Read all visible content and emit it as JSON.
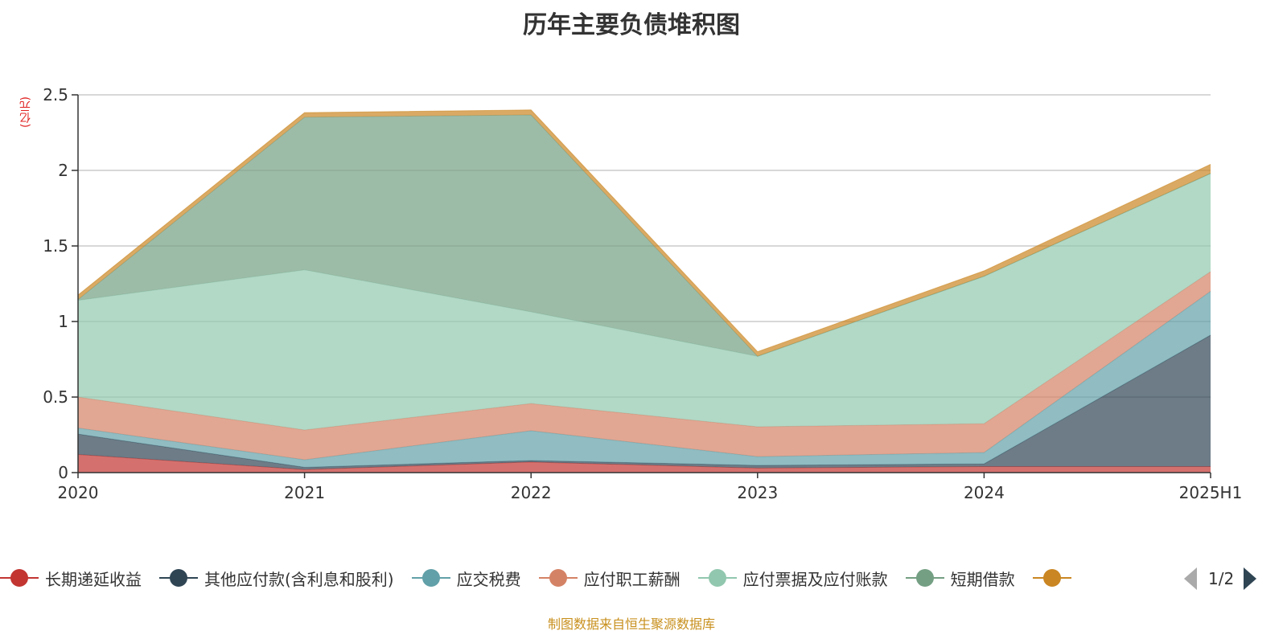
{
  "chart_data": {
    "type": "area",
    "stacked": true,
    "title": "历年主要负债堆积图",
    "ylabel": "(亿元)",
    "xlabel": "",
    "categories": [
      "2020",
      "2021",
      "2022",
      "2023",
      "2024",
      "2025H1"
    ],
    "ylim": [
      0,
      2.5
    ],
    "yticks": [
      "0",
      "0.5",
      "1",
      "1.5",
      "2",
      "2.5"
    ],
    "grid": true,
    "legend_position": "bottom",
    "series": [
      {
        "name": "长期递延收益",
        "color": "#c23531",
        "values": [
          0.12,
          0.02,
          0.07,
          0.03,
          0.04,
          0.04
        ]
      },
      {
        "name": "其他应付款(含利息和股利)",
        "color": "#2f4554",
        "values": [
          0.135,
          0.015,
          0.01,
          0.018,
          0.018,
          0.87
        ]
      },
      {
        "name": "应交税费",
        "color": "#61a0a8",
        "values": [
          0.04,
          0.05,
          0.197,
          0.058,
          0.075,
          0.29
        ]
      },
      {
        "name": "应付职工薪酬",
        "color": "#d48265",
        "values": [
          0.205,
          0.197,
          0.18,
          0.197,
          0.191,
          0.13
        ]
      },
      {
        "name": "应付票据及应付账款",
        "color": "#91c7ae",
        "values": [
          0.64,
          1.06,
          0.607,
          0.467,
          0.976,
          0.65
        ]
      },
      {
        "name": "短期借款",
        "color": "#749f83",
        "values": [
          0.005,
          1.01,
          1.303,
          0,
          0,
          0
        ]
      },
      {
        "color": "#ca8622",
        "values": [
          0.03,
          0.03,
          0.033,
          0.03,
          0.035,
          0.06
        ]
      }
    ]
  },
  "legend": {
    "page": "1/2"
  },
  "source": "制图数据来自恒生聚源数据库"
}
